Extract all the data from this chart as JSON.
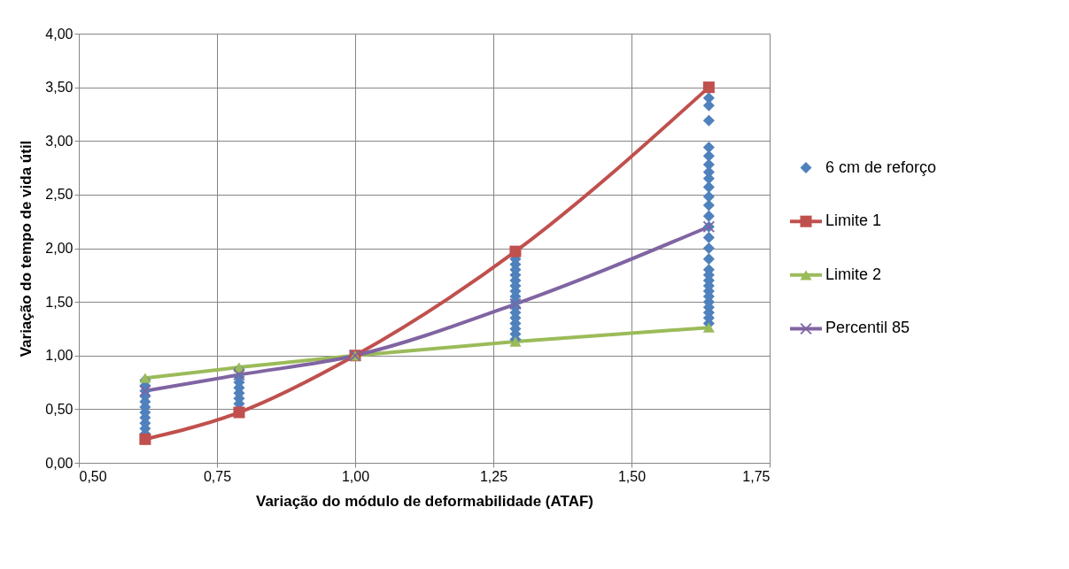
{
  "chart_data": {
    "type": "line",
    "xlabel": "Variação do módulo de deformabilidade (ATAF)",
    "ylabel": "Variação do tempo de vida útil",
    "xlim": [
      0.5,
      1.75
    ],
    "xticks": [
      {
        "value": 0.5,
        "label": "0,50"
      },
      {
        "value": 0.75,
        "label": "0,75"
      },
      {
        "value": 1.0,
        "label": "1,00"
      },
      {
        "value": 1.25,
        "label": "1,25"
      },
      {
        "value": 1.5,
        "label": "1,50"
      },
      {
        "value": 1.75,
        "label": "1,75"
      }
    ],
    "ylim": [
      0,
      4
    ],
    "yticks": [
      {
        "value": 0,
        "label": "0,00"
      },
      {
        "value": 0.5,
        "label": "0,50"
      },
      {
        "value": 1.0,
        "label": "1,00"
      },
      {
        "value": 1.5,
        "label": "1,50"
      },
      {
        "value": 2.0,
        "label": "2,00"
      },
      {
        "value": 2.5,
        "label": "2,50"
      },
      {
        "value": 3.0,
        "label": "3,00"
      },
      {
        "value": 3.5,
        "label": "3,50"
      },
      {
        "value": 4.0,
        "label": "4,00"
      }
    ],
    "grid": true,
    "legend": "right",
    "series": [
      {
        "name": "6 cm de reforço",
        "type": "scatter",
        "marker": "diamond",
        "color": "#4f81bd",
        "x": [
          0.62,
          0.62,
          0.62,
          0.62,
          0.62,
          0.62,
          0.62,
          0.62,
          0.62,
          0.62,
          0.62,
          0.79,
          0.79,
          0.79,
          0.79,
          0.79,
          0.79,
          0.79,
          1.29,
          1.29,
          1.29,
          1.29,
          1.29,
          1.29,
          1.29,
          1.29,
          1.29,
          1.29,
          1.29,
          1.29,
          1.29,
          1.29,
          1.29,
          1.29,
          1.64,
          1.64,
          1.64,
          1.64,
          1.64,
          1.64,
          1.64,
          1.64,
          1.64,
          1.64,
          1.64,
          1.64,
          1.64,
          1.64,
          1.64,
          1.64,
          1.64,
          1.64,
          1.64,
          1.64,
          1.64,
          1.64,
          1.64,
          1.64,
          1.64,
          1.64,
          1.64
        ],
        "values": [
          0.27,
          0.32,
          0.37,
          0.42,
          0.47,
          0.52,
          0.57,
          0.62,
          0.67,
          0.72,
          0.77,
          0.55,
          0.6,
          0.65,
          0.7,
          0.75,
          0.8,
          0.87,
          1.15,
          1.2,
          1.25,
          1.3,
          1.35,
          1.4,
          1.45,
          1.5,
          1.55,
          1.6,
          1.65,
          1.7,
          1.75,
          1.8,
          1.85,
          1.9,
          1.3,
          1.35,
          1.4,
          1.5,
          1.6,
          1.7,
          1.8,
          1.9,
          2.0,
          2.1,
          2.2,
          2.3,
          2.4,
          2.48,
          2.57,
          2.65,
          2.71,
          2.78,
          2.86,
          2.94,
          3.19,
          3.33,
          3.4,
          1.45,
          1.55,
          1.65,
          1.75
        ]
      },
      {
        "name": "Limite 1",
        "marker": "square",
        "color": "#c0504d",
        "x": [
          0.62,
          0.79,
          1.0,
          1.29,
          1.64
        ],
        "values": [
          0.22,
          0.47,
          1.0,
          1.97,
          3.5
        ]
      },
      {
        "name": "Limite 2",
        "marker": "triangle",
        "color": "#9bbb59",
        "x": [
          0.62,
          0.79,
          1.0,
          1.29,
          1.64
        ],
        "values": [
          0.79,
          0.89,
          1.0,
          1.13,
          1.26
        ]
      },
      {
        "name": "Percentil 85",
        "marker": "cross",
        "color": "#8064a2",
        "x": [
          0.62,
          0.79,
          1.0,
          1.29,
          1.64
        ],
        "values": [
          0.67,
          0.82,
          1.0,
          1.48,
          2.2
        ]
      }
    ]
  }
}
